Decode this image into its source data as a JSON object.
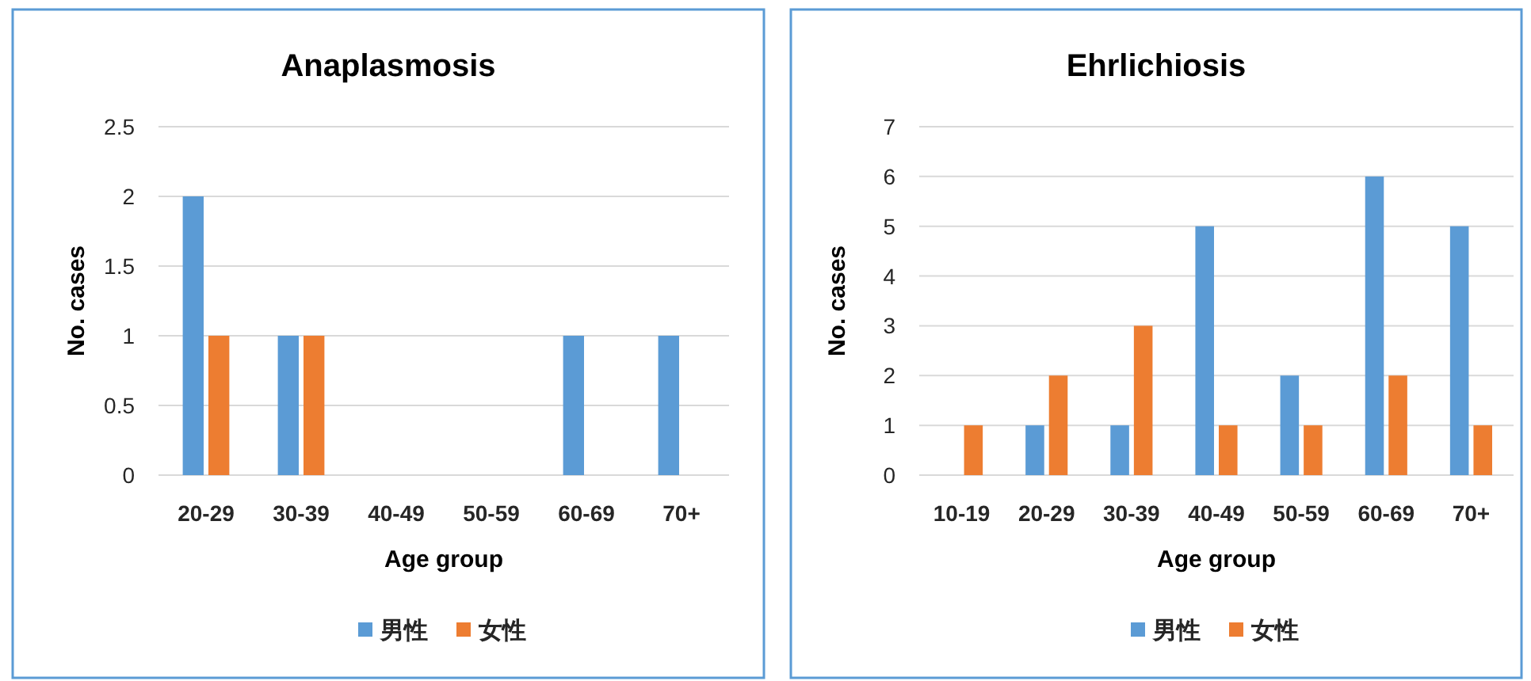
{
  "chart_data": [
    {
      "type": "bar",
      "title": "Anaplasmosis",
      "xlabel": "Age group",
      "ylabel": "No. cases",
      "categories": [
        "20-29",
        "30-39",
        "40-49",
        "50-59",
        "60-69",
        "70+"
      ],
      "series": [
        {
          "name": "男性",
          "color": "#5b9bd5",
          "values": [
            2,
            1,
            0,
            0,
            1,
            1
          ]
        },
        {
          "name": "女性",
          "color": "#ed7d31",
          "values": [
            1,
            1,
            0,
            0,
            0,
            0
          ]
        }
      ],
      "ylim": [
        0,
        2.5
      ],
      "yticks": [
        0,
        0.5,
        1,
        1.5,
        2,
        2.5
      ],
      "grid": "y",
      "legend": "bottom"
    },
    {
      "type": "bar",
      "title": "Ehrlichiosis",
      "xlabel": "Age group",
      "ylabel": "No. cases",
      "categories": [
        "10-19",
        "20-29",
        "30-39",
        "40-49",
        "50-59",
        "60-69",
        "70+"
      ],
      "series": [
        {
          "name": "男性",
          "color": "#5b9bd5",
          "values": [
            0,
            1,
            1,
            5,
            2,
            6,
            5
          ]
        },
        {
          "name": "女性",
          "color": "#ed7d31",
          "values": [
            1,
            2,
            3,
            1,
            1,
            2,
            1
          ]
        }
      ],
      "ylim": [
        0,
        7
      ],
      "yticks": [
        0,
        1,
        2,
        3,
        4,
        5,
        6,
        7
      ],
      "grid": "y",
      "legend": "bottom"
    }
  ]
}
